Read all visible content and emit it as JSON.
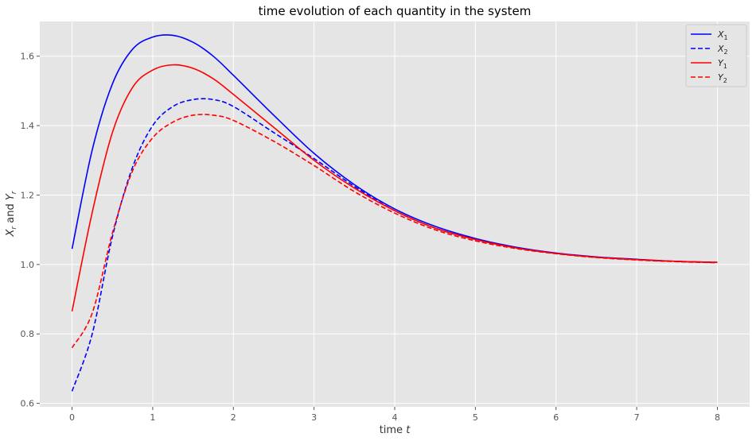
{
  "chart_data": {
    "type": "line",
    "title": "time evolution of each quantity in the system",
    "xlabel_main": "time",
    "xlabel_var": "t",
    "ylabel_text_a": "X",
    "ylabel_sub_a": "r",
    "ylabel_mid": " and ",
    "ylabel_text_b": "Y",
    "ylabel_sub_b": "r",
    "xlim": [
      -0.4,
      8.4
    ],
    "ylim": [
      0.59,
      1.7
    ],
    "xticks": [
      0,
      1,
      2,
      3,
      4,
      5,
      6,
      7,
      8
    ],
    "xtick_labels": [
      "0",
      "1",
      "2",
      "3",
      "4",
      "5",
      "6",
      "7",
      "8"
    ],
    "yticks": [
      0.6,
      0.8,
      1.0,
      1.2,
      1.4,
      1.6
    ],
    "ytick_labels": [
      "0.6",
      "0.8",
      "1.0",
      "1.2",
      "1.4",
      "1.6"
    ],
    "grid": true,
    "legend_position": "top-right",
    "x": [
      0,
      0.25,
      0.5,
      0.75,
      1.0,
      1.25,
      1.5,
      1.75,
      2.0,
      2.5,
      3.0,
      3.5,
      4.0,
      4.5,
      5.0,
      5.5,
      6.0,
      6.5,
      7.0,
      7.5,
      8.0
    ],
    "series": [
      {
        "name_base": "X",
        "name_sub": "1",
        "color": "#0000ff",
        "dash": "solid",
        "values": [
          1.045,
          1.33,
          1.52,
          1.62,
          1.655,
          1.66,
          1.64,
          1.6,
          1.545,
          1.43,
          1.32,
          1.23,
          1.16,
          1.11,
          1.075,
          1.05,
          1.033,
          1.022,
          1.015,
          1.009,
          1.006
        ]
      },
      {
        "name_base": "X",
        "name_sub": "2",
        "color": "#0000ff",
        "dash": "dashed",
        "values": [
          0.635,
          0.8,
          1.08,
          1.28,
          1.4,
          1.455,
          1.475,
          1.475,
          1.455,
          1.38,
          1.305,
          1.225,
          1.155,
          1.105,
          1.072,
          1.048,
          1.032,
          1.021,
          1.014,
          1.009,
          1.006
        ]
      },
      {
        "name_base": "Y",
        "name_sub": "1",
        "color": "#ff0000",
        "dash": "solid",
        "values": [
          0.865,
          1.15,
          1.38,
          1.51,
          1.56,
          1.575,
          1.565,
          1.535,
          1.49,
          1.395,
          1.3,
          1.22,
          1.155,
          1.105,
          1.072,
          1.048,
          1.032,
          1.021,
          1.014,
          1.009,
          1.006
        ]
      },
      {
        "name_base": "Y",
        "name_sub": "2",
        "color": "#ff0000",
        "dash": "dashed",
        "values": [
          0.76,
          0.86,
          1.09,
          1.27,
          1.365,
          1.41,
          1.43,
          1.43,
          1.415,
          1.355,
          1.285,
          1.21,
          1.148,
          1.1,
          1.068,
          1.046,
          1.031,
          1.02,
          1.013,
          1.008,
          1.005
        ]
      }
    ]
  }
}
